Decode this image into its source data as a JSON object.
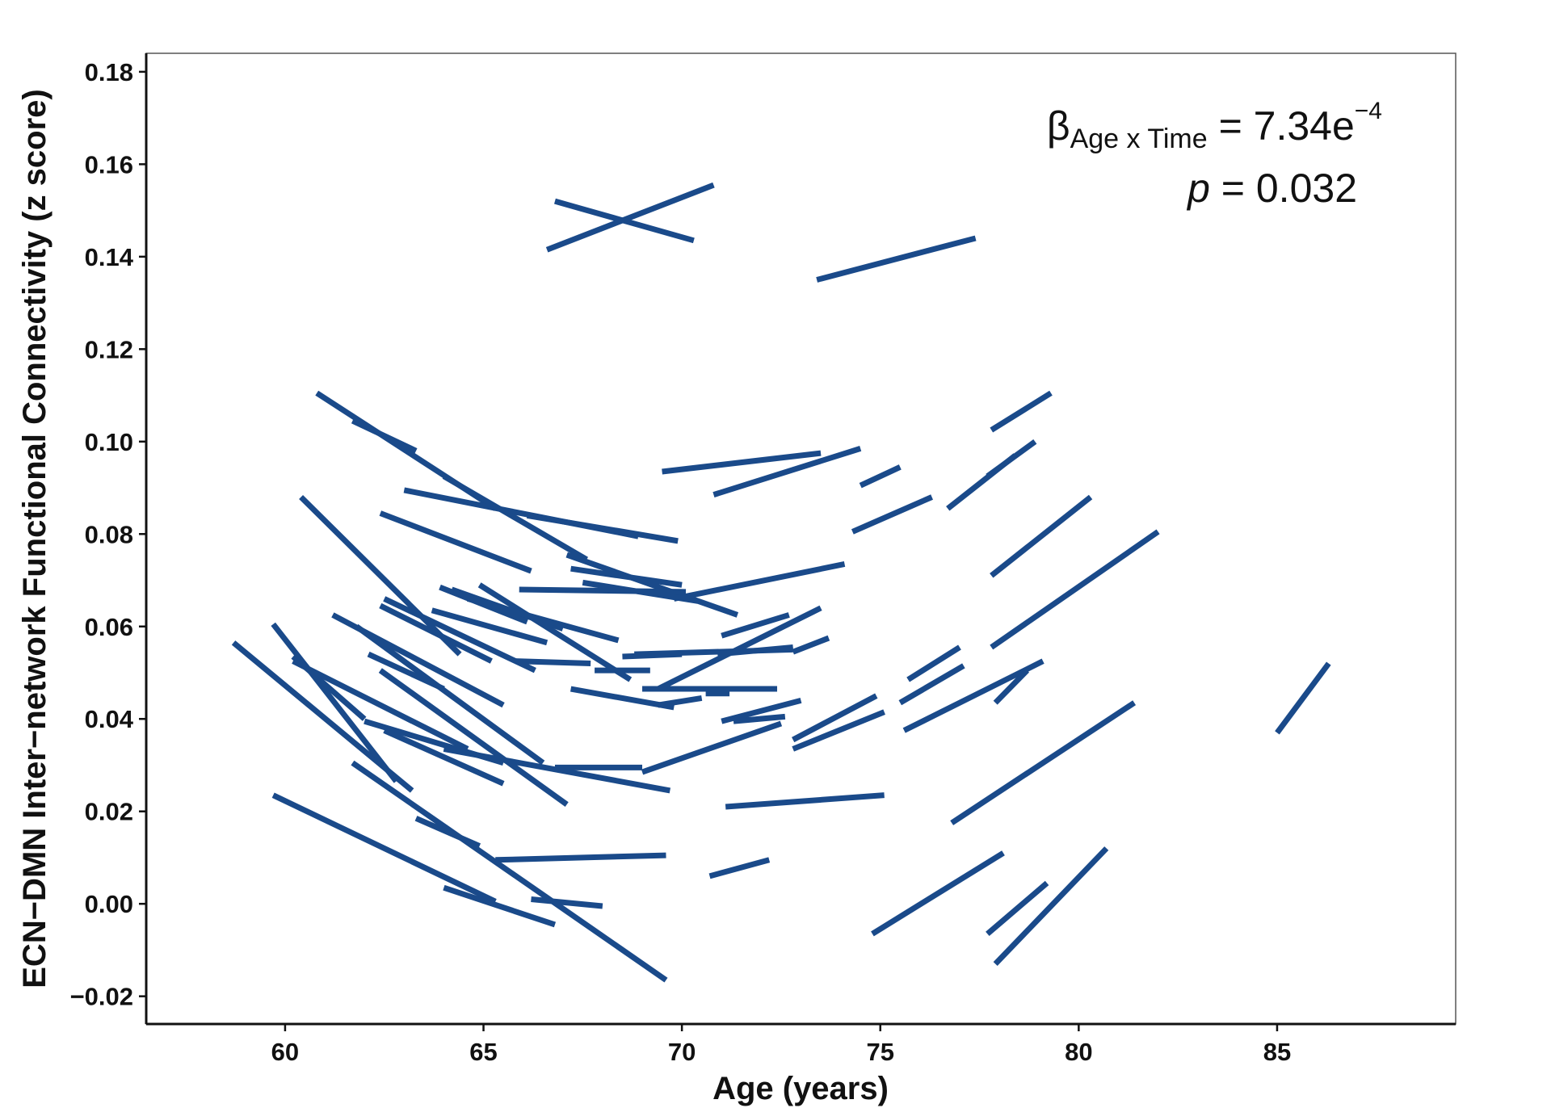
{
  "chart_data": {
    "type": "line",
    "xlabel": "Age (years)",
    "ylabel": "ECN−DMN Inter−network Functional Connectivity (z score)",
    "xlim": [
      56.5,
      89.5
    ],
    "ylim": [
      -0.026,
      0.184
    ],
    "x_ticks": [
      60,
      65,
      70,
      75,
      80,
      85
    ],
    "x_tick_labels": [
      "60",
      "65",
      "70",
      "75",
      "80",
      "85"
    ],
    "y_ticks": [
      -0.02,
      0.0,
      0.02,
      0.04,
      0.06,
      0.08,
      0.1,
      0.12,
      0.14,
      0.16,
      0.18
    ],
    "y_tick_labels": [
      "−0.02",
      "0.00",
      "0.02",
      "0.04",
      "0.06",
      "0.08",
      "0.10",
      "0.12",
      "0.14",
      "0.16",
      "0.18"
    ],
    "grid": false,
    "line_color": "#1a4a8a",
    "annotation": {
      "beta_symbol": "β",
      "beta_subscript": "Age x Time",
      "beta_value": " = 7.34e",
      "beta_exponent": "−4",
      "p_symbol": "p",
      "p_value": " = 0.032"
    },
    "segments": [
      [
        66.6,
        0.1415,
        70.8,
        0.1555
      ],
      [
        66.8,
        0.152,
        70.3,
        0.1435
      ],
      [
        73.4,
        0.135,
        77.4,
        0.144
      ],
      [
        60.8,
        0.1105,
        65.3,
        0.0855
      ],
      [
        61.7,
        0.1045,
        63.3,
        0.098
      ],
      [
        79.3,
        0.1105,
        77.8,
        0.1025
      ],
      [
        69.5,
        0.0935,
        73.5,
        0.0975
      ],
      [
        70.8,
        0.0885,
        74.5,
        0.0985
      ],
      [
        74.5,
        0.0905,
        75.5,
        0.0945
      ],
      [
        78.9,
        0.1,
        77.7,
        0.0925
      ],
      [
        78.4,
        0.097,
        76.7,
        0.0855
      ],
      [
        74.3,
        0.0805,
        76.3,
        0.088
      ],
      [
        63.0,
        0.0895,
        68.9,
        0.0795
      ],
      [
        64.0,
        0.0925,
        67.6,
        0.0745
      ],
      [
        66.1,
        0.084,
        69.9,
        0.0785
      ],
      [
        62.4,
        0.0845,
        66.2,
        0.072
      ],
      [
        67.1,
        0.0755,
        71.4,
        0.0625
      ],
      [
        67.2,
        0.0725,
        70.0,
        0.069
      ],
      [
        67.5,
        0.0695,
        70.4,
        0.0655
      ],
      [
        60.4,
        0.088,
        64.4,
        0.054
      ],
      [
        80.3,
        0.088,
        77.8,
        0.071
      ],
      [
        74.1,
        0.0735,
        69.8,
        0.066
      ],
      [
        65.9,
        0.068,
        70.1,
        0.0675
      ],
      [
        64.9,
        0.069,
        68.7,
        0.0485
      ],
      [
        64.2,
        0.068,
        67.0,
        0.0595
      ],
      [
        63.9,
        0.0685,
        66.1,
        0.061
      ],
      [
        62.5,
        0.066,
        66.3,
        0.0505
      ],
      [
        62.4,
        0.0645,
        65.2,
        0.0525
      ],
      [
        63.7,
        0.0635,
        66.6,
        0.0565
      ],
      [
        64.6,
        0.066,
        68.4,
        0.057
      ],
      [
        71.0,
        0.058,
        72.7,
        0.0625
      ],
      [
        73.5,
        0.064,
        69.4,
        0.0465
      ],
      [
        73.7,
        0.0575,
        72.8,
        0.0545
      ],
      [
        70.9,
        0.054,
        72.8,
        0.0555
      ],
      [
        61.2,
        0.0625,
        65.5,
        0.043
      ],
      [
        61.8,
        0.06,
        66.5,
        0.0305
      ],
      [
        62.1,
        0.054,
        64.0,
        0.0465
      ],
      [
        62.4,
        0.0505,
        67.1,
        0.0215
      ],
      [
        65.8,
        0.0525,
        67.7,
        0.052
      ],
      [
        67.8,
        0.0505,
        69.2,
        0.0505
      ],
      [
        68.8,
        0.054,
        72.8,
        0.055
      ],
      [
        68.5,
        0.0535,
        70.0,
        0.054
      ],
      [
        58.7,
        0.0565,
        63.2,
        0.0245
      ],
      [
        59.7,
        0.0605,
        62.8,
        0.0265
      ],
      [
        60.2,
        0.0535,
        62.0,
        0.04
      ],
      [
        60.2,
        0.0525,
        64.6,
        0.0335
      ],
      [
        62.0,
        0.0395,
        65.5,
        0.0305
      ],
      [
        69.0,
        0.0465,
        72.4,
        0.0465
      ],
      [
        67.2,
        0.0465,
        69.8,
        0.0425
      ],
      [
        69.4,
        0.043,
        70.5,
        0.0445
      ],
      [
        70.6,
        0.0455,
        71.2,
        0.0455
      ],
      [
        71.0,
        0.0395,
        73.0,
        0.044
      ],
      [
        71.3,
        0.0395,
        72.6,
        0.0405
      ],
      [
        70.5,
        0.0435,
        70.5,
        0.0435
      ],
      [
        69.0,
        0.0285,
        72.5,
        0.039
      ],
      [
        66.8,
        0.0295,
        69.0,
        0.0295
      ],
      [
        62.5,
        0.0375,
        65.5,
        0.026
      ],
      [
        64.0,
        0.0335,
        69.7,
        0.0245
      ],
      [
        72.8,
        0.0355,
        74.9,
        0.045
      ],
      [
        72.8,
        0.0335,
        75.1,
        0.0415
      ],
      [
        75.5,
        0.0435,
        77.1,
        0.0515
      ],
      [
        75.7,
        0.0485,
        77.0,
        0.0555
      ],
      [
        75.6,
        0.0375,
        79.1,
        0.0525
      ],
      [
        77.8,
        0.0555,
        82.0,
        0.0805
      ],
      [
        77.9,
        0.0435,
        78.7,
        0.0505
      ],
      [
        71.1,
        0.021,
        75.1,
        0.0235
      ],
      [
        76.8,
        0.0175,
        81.4,
        0.0435
      ],
      [
        61.7,
        0.0305,
        69.6,
        -0.0165
      ],
      [
        59.7,
        0.0235,
        65.3,
        0.0005
      ],
      [
        63.3,
        0.0185,
        64.9,
        0.0125
      ],
      [
        65.3,
        0.0095,
        69.6,
        0.0105
      ],
      [
        64.0,
        0.0035,
        66.8,
        -0.0045
      ],
      [
        66.2,
        0.001,
        68.0,
        -0.0005
      ],
      [
        70.7,
        0.006,
        72.2,
        0.0095
      ],
      [
        74.8,
        -0.0065,
        78.1,
        0.011
      ],
      [
        77.7,
        -0.0065,
        79.2,
        0.0045
      ],
      [
        77.9,
        -0.013,
        80.7,
        0.012
      ],
      [
        85.0,
        0.037,
        86.3,
        0.052
      ]
    ]
  }
}
